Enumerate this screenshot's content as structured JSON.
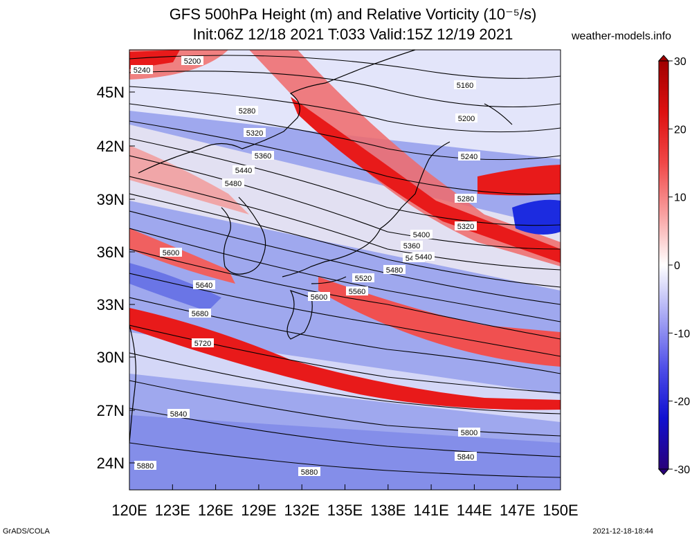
{
  "header": {
    "title_line1": "GFS 500hPa Height (m) and Relative Vorticity (10⁻⁵/s)",
    "title_line2": "Init:06Z 12/18 2021 T:033 Valid:15Z 12/19 2021",
    "site": "weather-models.info"
  },
  "footer": {
    "left": "GrADS/COLA",
    "right": "2021-12-18-18:44"
  },
  "map": {
    "lon_range": [
      120,
      150
    ],
    "lat_range": [
      22.5,
      47.5
    ],
    "lon_ticks": [
      "120E",
      "123E",
      "126E",
      "129E",
      "132E",
      "135E",
      "138E",
      "141E",
      "144E",
      "147E",
      "150E"
    ],
    "lat_ticks": [
      "45N",
      "42N",
      "39N",
      "36N",
      "33N",
      "30N",
      "27N",
      "24N"
    ],
    "contour_labels": [
      "5200",
      "5240",
      "5160",
      "5280",
      "5200",
      "5320",
      "5240",
      "5360",
      "5400",
      "5440",
      "5280",
      "5480",
      "5320",
      "5360",
      "5400",
      "5440",
      "5600",
      "5480",
      "5520",
      "5640",
      "5560",
      "5600",
      "5680",
      "5720",
      "5840",
      "5800",
      "5840",
      "5880",
      "5880"
    ],
    "colors": {
      "positive": "#e8191c",
      "negative": "#1c2be0",
      "neutral": "#ffffff",
      "contour": "#000000",
      "coast": "#000000"
    }
  },
  "colorbar": {
    "labels": [
      "30",
      "20",
      "10",
      "0",
      "-10",
      "-20",
      "-30"
    ],
    "colors": [
      "#a00000",
      "#dd1010",
      "#f04848",
      "#f8a0a0",
      "#ffffff",
      "#a8a8f4",
      "#5050e8",
      "#1010d0",
      "#2a007a"
    ]
  }
}
